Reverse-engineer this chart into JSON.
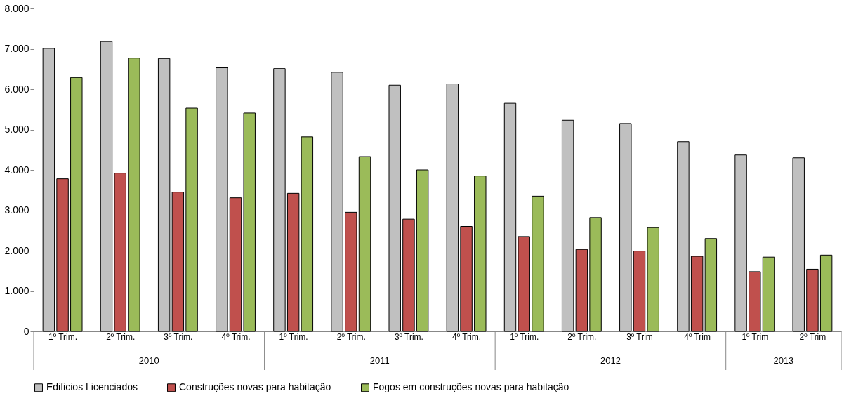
{
  "chart_data": {
    "type": "bar",
    "categories": [
      "1º Trim.",
      "2º Trim.",
      "3º Trim.",
      "4º Trim.",
      "1º Trim.",
      "2º Trim.",
      "3º Trim.",
      "4º Trim.",
      "1º Trim.",
      "2º Trim.",
      "3º Trim",
      "4º Trim",
      "1º Trim",
      "2º Trim"
    ],
    "annotations": [
      "2010",
      "2011",
      "2012",
      "2013"
    ],
    "series": [
      {
        "name": "Edificios Licenciados",
        "color": "#c0c0c0",
        "values": [
          7010,
          7180,
          6760,
          6530,
          6510,
          6420,
          6100,
          6130,
          5650,
          5230,
          5150,
          4700,
          4370,
          4300
        ]
      },
      {
        "name": "Construções novas para habitação",
        "color": "#c0504d",
        "values": [
          3780,
          3920,
          3450,
          3310,
          3420,
          2950,
          2780,
          2600,
          2350,
          2030,
          1990,
          1860,
          1480,
          1540
        ]
      },
      {
        "name": "Fogos em construções novas para habitação",
        "color": "#9bbb59",
        "values": [
          6290,
          6770,
          5530,
          5410,
          4820,
          4330,
          4000,
          3850,
          3350,
          2820,
          2570,
          2300,
          1840,
          1890
        ]
      }
    ],
    "ylim": [
      0,
      8000
    ],
    "yticks": [
      0,
      {
        "value": 1000,
        "label": "1.000"
      },
      {
        "value": 2000,
        "label": "2.000"
      },
      {
        "value": 3000,
        "label": "3.000"
      },
      {
        "value": 4000,
        "label": "4.000"
      },
      {
        "value": 5000,
        "label": "5.000"
      },
      {
        "value": 6000,
        "label": "6.000"
      },
      {
        "value": 7000,
        "label": "7.000"
      },
      {
        "value": 8000,
        "label": "8.000"
      }
    ],
    "grid": false,
    "legend": "bottom"
  }
}
